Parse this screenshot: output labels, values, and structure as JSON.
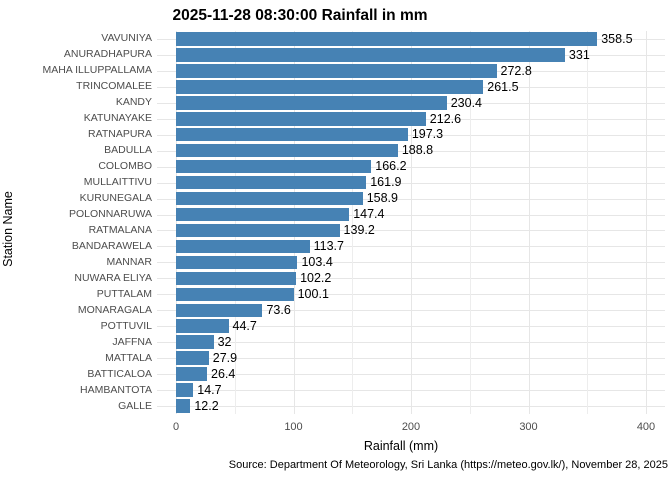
{
  "title": "2025-11-28 08:30:00 Rainfall in mm",
  "caption": "Source: Department Of Meteorology, Sri Lanka (https://meteo.gov.lk/), November 28, 2025",
  "chart_data": {
    "type": "bar",
    "orientation": "horizontal",
    "title": "2025-11-28 08:30:00 Rainfall in mm",
    "xlabel": "Rainfall (mm)",
    "ylabel": "Station Name",
    "categories": [
      "VAVUNIYA",
      "ANURADHAPURA",
      "MAHA ILLUPPALLAMA",
      "TRINCOMALEE",
      "KANDY",
      "KATUNAYAKE",
      "RATNAPURA",
      "BADULLA",
      "COLOMBO",
      "MULLAITTIVU",
      "KURUNEGALA",
      "POLONNARUWA",
      "RATMALANA",
      "BANDARAWELA",
      "MANNAR",
      "NUWARA ELIYA",
      "PUTTALAM",
      "MONARAGALA",
      "POTTUVIL",
      "JAFFNA",
      "MATTALA",
      "BATTICALOA",
      "HAMBANTOTA",
      "GALLE"
    ],
    "values": [
      358.5,
      331,
      272.8,
      261.5,
      230.4,
      212.6,
      197.3,
      188.8,
      166.2,
      161.9,
      158.9,
      147.4,
      139.2,
      113.7,
      103.4,
      102.2,
      100.1,
      73.6,
      44.7,
      32,
      27.9,
      26.4,
      14.7,
      12.2
    ],
    "value_labels": [
      "358.5",
      "331",
      "272.8",
      "261.5",
      "230.4",
      "212.6",
      "197.3",
      "188.8",
      "166.2",
      "161.9",
      "158.9",
      "147.4",
      "139.2",
      "113.7",
      "103.4",
      "102.2",
      "100.1",
      "73.6",
      "44.7",
      "32",
      "27.9",
      "26.4",
      "14.7",
      "12.2"
    ],
    "xlim": [
      0,
      416
    ],
    "x_major_ticks": [
      0,
      100,
      200,
      300,
      400
    ],
    "x_minor_ticks": [
      50,
      150,
      250,
      350
    ],
    "grid": true,
    "legend": "none",
    "bar_color": "#4682B4",
    "grid_color": "#E6E6E6",
    "tick_label_color": "#4D4D4D",
    "value_label_color": "#000000"
  }
}
